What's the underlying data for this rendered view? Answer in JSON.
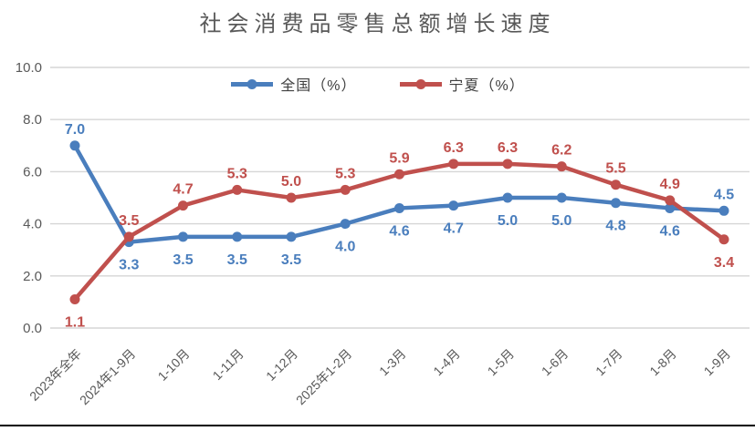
{
  "chart_data": {
    "type": "line",
    "title": "社会消费品零售总额增长速度",
    "categories": [
      "2023年全年",
      "2024年1-9月",
      "1-10月",
      "1-11月",
      "1-12月",
      "2025年1-2月",
      "1-3月",
      "1-4月",
      "1-5月",
      "1-6月",
      "1-7月",
      "1-8月",
      "1-9月"
    ],
    "series": [
      {
        "id": "national",
        "name": "全国（%）",
        "color": "#4A7EBD",
        "values": [
          7.0,
          3.3,
          3.5,
          3.5,
          3.5,
          4.0,
          4.6,
          4.7,
          5.0,
          5.0,
          4.8,
          4.6,
          4.5
        ],
        "label_side": [
          "above",
          "below",
          "below",
          "below",
          "below",
          "below",
          "below",
          "below",
          "below",
          "below",
          "below",
          "below",
          "above"
        ]
      },
      {
        "id": "ningxia",
        "name": "宁夏（%）",
        "color": "#C0504D",
        "values": [
          1.1,
          3.5,
          4.7,
          5.3,
          5.0,
          5.3,
          5.9,
          6.3,
          6.3,
          6.2,
          5.5,
          4.9,
          3.4
        ],
        "label_side": [
          "below",
          "above",
          "above",
          "above",
          "above",
          "above",
          "above",
          "above",
          "above",
          "above",
          "above",
          "above",
          "below"
        ]
      }
    ],
    "ylim": [
      0,
      10
    ],
    "yticks": [
      {
        "value": 0,
        "label": "0.0"
      },
      {
        "value": 2,
        "label": "2.0"
      },
      {
        "value": 4,
        "label": "4.0"
      },
      {
        "value": 6,
        "label": "6.0"
      },
      {
        "value": 8,
        "label": "8.0"
      },
      {
        "value": 10,
        "label": "10.0"
      }
    ],
    "grid": true,
    "legend_position": "top-center",
    "marker": "circle",
    "value_label_decimals": 1
  },
  "colors": {
    "background": "#FFFFFF",
    "grid": "#D6D6D6",
    "axis_text": "#595959",
    "title_text": "#595959",
    "legend_text": "#404040",
    "bottom_rule": "#000000"
  }
}
